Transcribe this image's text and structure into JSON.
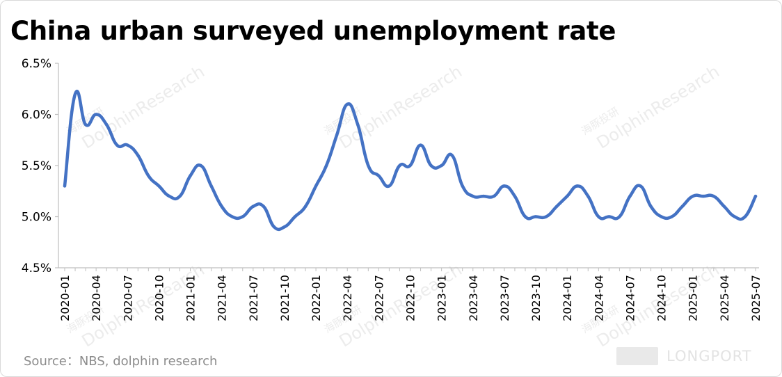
{
  "title": "China urban surveyed unemployment rate",
  "source": "Source：NBS, dolphin research",
  "watermark": {
    "text": "DolphinResearch",
    "cn": "海豚投研"
  },
  "brand": {
    "text": "LONGPORT"
  },
  "colors": {
    "line": "#4472c4",
    "axis": "#bfbfbf",
    "watermark": "#ececec"
  },
  "chart_data": {
    "type": "line",
    "title": "China urban surveyed unemployment rate",
    "xlabel": "",
    "ylabel": "",
    "ylim": [
      4.5,
      6.5
    ],
    "yticks": [
      "4.5%",
      "5.0%",
      "5.5%",
      "6.0%",
      "6.5%"
    ],
    "ytick_values": [
      4.5,
      5.0,
      5.5,
      6.0,
      6.5
    ],
    "grid": false,
    "legend": "none",
    "x": [
      "2020-01",
      "2020-02",
      "2020-03",
      "2020-04",
      "2020-05",
      "2020-06",
      "2020-07",
      "2020-08",
      "2020-09",
      "2020-10",
      "2020-11",
      "2020-12",
      "2021-01",
      "2021-02",
      "2021-03",
      "2021-04",
      "2021-05",
      "2021-06",
      "2021-07",
      "2021-08",
      "2021-09",
      "2021-10",
      "2021-11",
      "2021-12",
      "2022-01",
      "2022-02",
      "2022-03",
      "2022-04",
      "2022-05",
      "2022-06",
      "2022-07",
      "2022-08",
      "2022-09",
      "2022-10",
      "2022-11",
      "2022-12",
      "2023-01",
      "2023-02",
      "2023-03",
      "2023-04",
      "2023-05",
      "2023-06",
      "2023-07",
      "2023-08",
      "2023-09",
      "2023-10",
      "2023-11",
      "2023-12",
      "2024-01",
      "2024-02",
      "2024-03",
      "2024-04",
      "2024-05",
      "2024-06",
      "2024-07",
      "2024-08",
      "2024-09",
      "2024-10",
      "2024-11",
      "2024-12",
      "2025-01",
      "2025-02",
      "2025-03",
      "2025-04",
      "2025-05",
      "2025-06",
      "2025-07"
    ],
    "xtick_labels": [
      "2020-01",
      "2020-04",
      "2020-07",
      "2020-10",
      "2021-01",
      "2021-04",
      "2021-07",
      "2021-10",
      "2022-01",
      "2022-04",
      "2022-07",
      "2022-10",
      "2023-01",
      "2023-04",
      "2023-07",
      "2023-10",
      "2024-01",
      "2024-04",
      "2024-07",
      "2024-10",
      "2025-01",
      "2025-04",
      "2025-07"
    ],
    "series": [
      {
        "values": [
          5.3,
          6.2,
          5.9,
          6.0,
          5.9,
          5.7,
          5.7,
          5.6,
          5.4,
          5.3,
          5.2,
          5.2,
          5.4,
          5.5,
          5.3,
          5.1,
          5.0,
          5.0,
          5.1,
          5.1,
          4.9,
          4.9,
          5.0,
          5.1,
          5.3,
          5.5,
          5.8,
          6.1,
          5.9,
          5.5,
          5.4,
          5.3,
          5.5,
          5.5,
          5.7,
          5.5,
          5.5,
          5.6,
          5.3,
          5.2,
          5.2,
          5.2,
          5.3,
          5.2,
          5.0,
          5.0,
          5.0,
          5.1,
          5.2,
          5.3,
          5.2,
          5.0,
          5.0,
          5.0,
          5.2,
          5.3,
          5.1,
          5.0,
          5.0,
          5.1,
          5.2,
          5.2,
          5.2,
          5.1,
          5.0,
          5.0,
          5.2
        ]
      }
    ]
  }
}
